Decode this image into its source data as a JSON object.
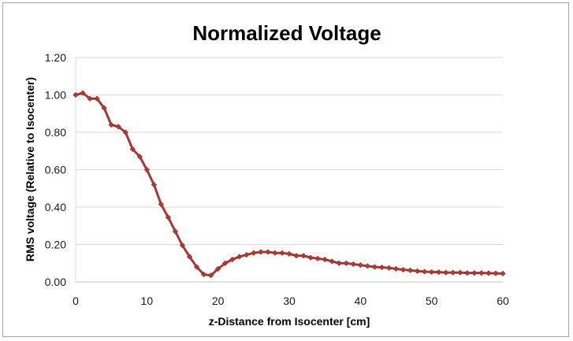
{
  "chart_data": {
    "type": "line",
    "title": "Normalized Voltage",
    "xlabel": "z-Distance from Isocenter [cm]",
    "ylabel": "RMS voltage (Relative to Isocenter)",
    "xlim": [
      0,
      60
    ],
    "ylim": [
      0,
      1.2
    ],
    "xticks": [
      0,
      10,
      20,
      30,
      40,
      50,
      60
    ],
    "yticks": [
      0.0,
      0.2,
      0.4,
      0.6,
      0.8,
      1.0,
      1.2
    ],
    "ytick_labels": [
      "0.00",
      "0.20",
      "0.40",
      "0.60",
      "0.80",
      "1.00",
      "1.20"
    ],
    "xtick_labels": [
      "0",
      "10",
      "20",
      "30",
      "40",
      "50",
      "60"
    ],
    "grid": "horizontal",
    "series": [
      {
        "name": "Normalized Voltage",
        "color": "#9e3a38",
        "marker_color": "#b03a35",
        "x": [
          0,
          1,
          2,
          3,
          4,
          5,
          6,
          7,
          8,
          9,
          10,
          11,
          12,
          13,
          14,
          15,
          16,
          17,
          18,
          19,
          20,
          21,
          22,
          23,
          24,
          25,
          26,
          27,
          28,
          29,
          30,
          31,
          32,
          33,
          34,
          35,
          36,
          37,
          38,
          39,
          40,
          41,
          42,
          43,
          44,
          45,
          46,
          47,
          48,
          49,
          50,
          51,
          52,
          53,
          54,
          55,
          56,
          57,
          58,
          59,
          60
        ],
        "y": [
          1.0,
          1.01,
          0.98,
          0.98,
          0.93,
          0.84,
          0.83,
          0.8,
          0.71,
          0.67,
          0.6,
          0.52,
          0.415,
          0.345,
          0.27,
          0.195,
          0.135,
          0.08,
          0.04,
          0.035,
          0.07,
          0.1,
          0.12,
          0.135,
          0.145,
          0.155,
          0.16,
          0.16,
          0.155,
          0.155,
          0.15,
          0.14,
          0.14,
          0.13,
          0.125,
          0.12,
          0.11,
          0.1,
          0.1,
          0.095,
          0.09,
          0.085,
          0.08,
          0.078,
          0.075,
          0.07,
          0.065,
          0.062,
          0.058,
          0.055,
          0.053,
          0.052,
          0.05,
          0.05,
          0.05,
          0.048,
          0.048,
          0.048,
          0.047,
          0.046,
          0.045
        ]
      }
    ]
  }
}
